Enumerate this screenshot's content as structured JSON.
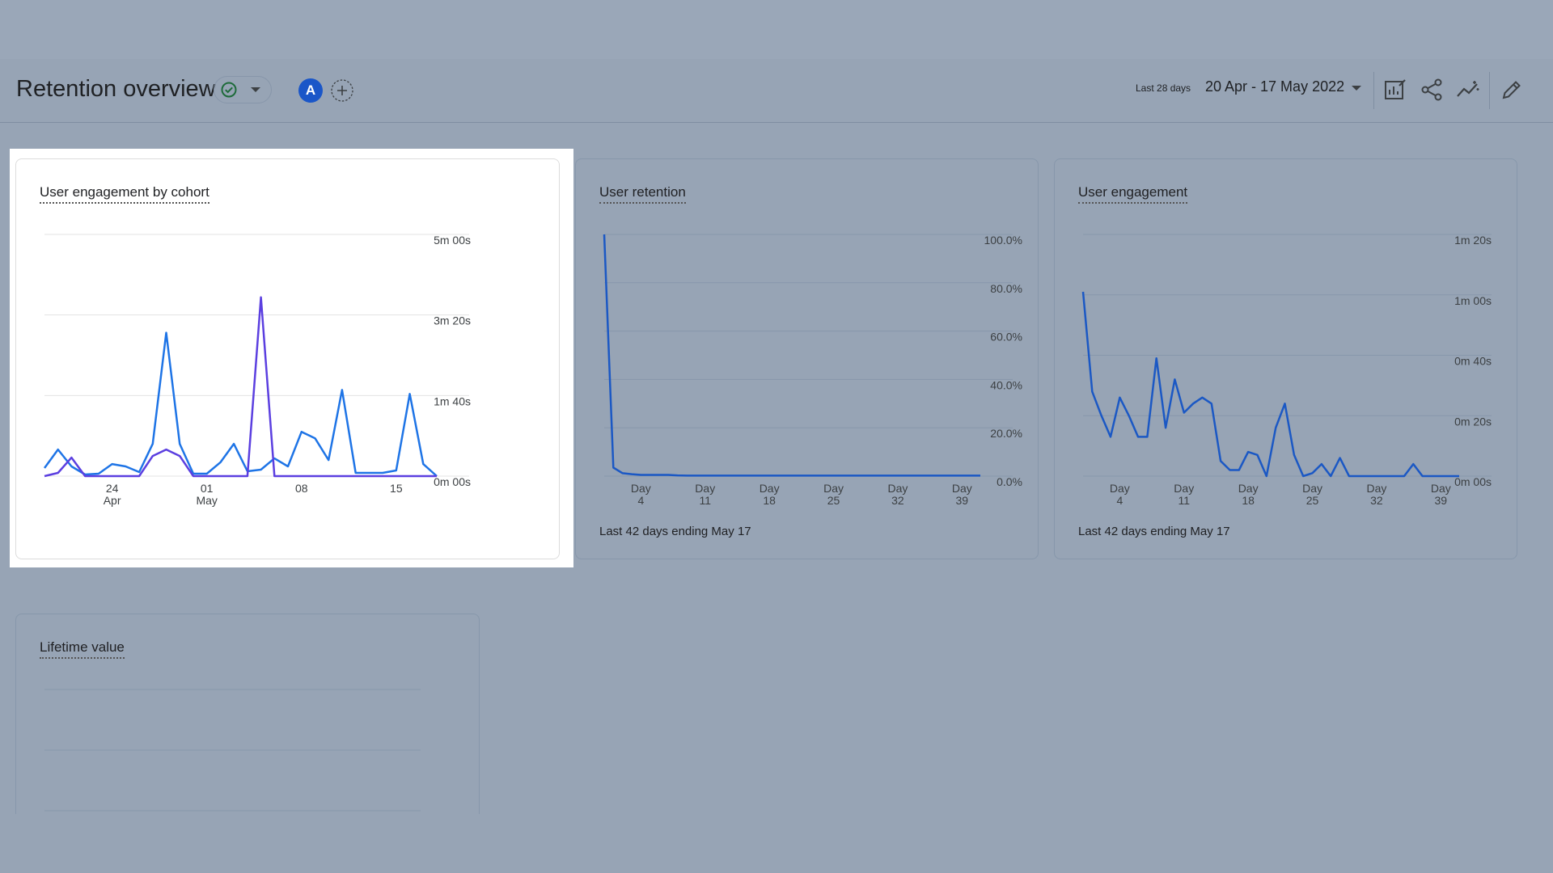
{
  "header": {
    "title": "Retention overview",
    "avatar_initial": "A",
    "date_range_label": "Last 28 days",
    "date_range_value": "20 Apr - 17 May 2022"
  },
  "icons": {
    "status": "check-circle-icon",
    "add": "add-circle-icon",
    "customize": "customize-report-icon",
    "share": "share-icon",
    "insights": "insights-icon",
    "edit": "edit-pencil-icon"
  },
  "colors": {
    "series_blue": "#1e74e6",
    "series_purple": "#5b3fe0",
    "retention_line": "#1b58c4",
    "highlight_card": "#ffffff",
    "dimmed_background": "#97a4b5"
  },
  "cards": {
    "cohort": {
      "title": "User engagement by cohort"
    },
    "retention": {
      "title": "User retention",
      "footer": "Last 42 days ending May 17"
    },
    "engagement": {
      "title": "User engagement",
      "footer": "Last 42 days ending May 17"
    },
    "ltv": {
      "title": "Lifetime value"
    }
  },
  "chart_data": [
    {
      "type": "line",
      "title": "User engagement by cohort",
      "y_ticks": [
        "5m 00s",
        "3m 20s",
        "1m 40s",
        "0m 00s"
      ],
      "y_tick_seconds": [
        300,
        200,
        100,
        0
      ],
      "ylim": [
        0,
        300
      ],
      "x_ticks": [
        {
          "day": 24,
          "label": "24",
          "sub": "Apr"
        },
        {
          "day": 31,
          "label": "01",
          "sub": "May"
        },
        {
          "day": 38,
          "label": "08",
          "sub": ""
        },
        {
          "day": 45,
          "label": "15",
          "sub": ""
        }
      ],
      "x_day_range": [
        19,
        48
      ],
      "series": [
        {
          "color": "#1e74e6",
          "values": [
            10,
            33,
            12,
            2,
            3,
            15,
            12,
            5,
            40,
            178,
            40,
            3,
            3,
            17,
            40,
            6,
            8,
            22,
            12,
            55,
            47,
            20,
            107,
            4,
            4,
            4,
            7,
            102,
            15,
            0
          ]
        },
        {
          "color": "#5b3fe0",
          "values": [
            0,
            4,
            23,
            0,
            0,
            0,
            0,
            0,
            25,
            33,
            25,
            0,
            0,
            0,
            0,
            0,
            222,
            0,
            0,
            0,
            0,
            0,
            0,
            0,
            0,
            0,
            0,
            0,
            0,
            0
          ]
        }
      ],
      "grid": true,
      "legend": "none"
    },
    {
      "type": "line",
      "title": "User retention",
      "y_ticks": [
        "100.0%",
        "80.0%",
        "60.0%",
        "40.0%",
        "20.0%",
        "0.0%"
      ],
      "ylim": [
        0,
        100
      ],
      "x_ticks": [
        {
          "day": 4,
          "label": "Day",
          "sub": "4"
        },
        {
          "day": 11,
          "label": "Day",
          "sub": "11"
        },
        {
          "day": 18,
          "label": "Day",
          "sub": "18"
        },
        {
          "day": 25,
          "label": "Day",
          "sub": "25"
        },
        {
          "day": 32,
          "label": "Day",
          "sub": "32"
        },
        {
          "day": 39,
          "label": "Day",
          "sub": "39"
        }
      ],
      "x_day_range": [
        0,
        41
      ],
      "series": [
        {
          "color": "#1b58c4",
          "values": [
            100,
            3.5,
            1.2,
            0.8,
            0.5,
            0.5,
            0.5,
            0.5,
            0.3,
            0.2,
            0.2,
            0.2,
            0.2,
            0.2,
            0.2,
            0.2,
            0.2,
            0.2,
            0.2,
            0.2,
            0.2,
            0.2,
            0.2,
            0.2,
            0.2,
            0.2,
            0.2,
            0.2,
            0.2,
            0.2,
            0.2,
            0.2,
            0.2,
            0.2,
            0.2,
            0.2,
            0.2,
            0.2,
            0.2,
            0.2,
            0.2,
            0.2
          ]
        }
      ],
      "grid": true,
      "legend": "none"
    },
    {
      "type": "line",
      "title": "User engagement",
      "y_ticks": [
        "1m 20s",
        "1m 00s",
        "0m 40s",
        "0m 20s",
        "0m 00s"
      ],
      "ylim": [
        0,
        80
      ],
      "x_ticks": [
        {
          "day": 4,
          "label": "Day",
          "sub": "4"
        },
        {
          "day": 11,
          "label": "Day",
          "sub": "11"
        },
        {
          "day": 18,
          "label": "Day",
          "sub": "18"
        },
        {
          "day": 25,
          "label": "Day",
          "sub": "25"
        },
        {
          "day": 32,
          "label": "Day",
          "sub": "32"
        },
        {
          "day": 39,
          "label": "Day",
          "sub": "39"
        }
      ],
      "x_day_range": [
        0,
        41
      ],
      "series": [
        {
          "color": "#1b58c4",
          "values": [
            61,
            28,
            20,
            13,
            26,
            20,
            13,
            13,
            39,
            16,
            32,
            21,
            24,
            26,
            24,
            5,
            2,
            2,
            8,
            7,
            0,
            16,
            24,
            7,
            0,
            1,
            4,
            0,
            6,
            0,
            0,
            0,
            0,
            0,
            0,
            0,
            4,
            0,
            0,
            0,
            0,
            0
          ]
        }
      ],
      "grid": true,
      "legend": "none"
    }
  ]
}
